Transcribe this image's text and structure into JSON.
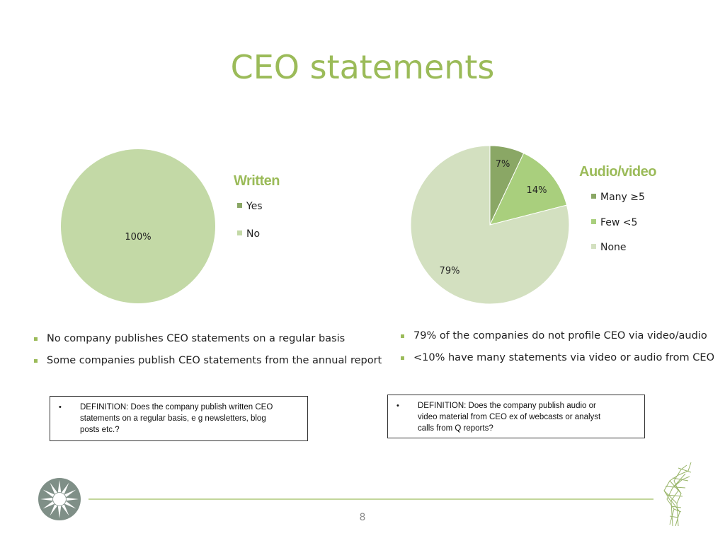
{
  "title": "CEO statements",
  "colors": {
    "accent": "#9bbb59",
    "dark_green": "#8aa765",
    "mid_green": "#a9cf7d",
    "light_green": "#c3d9a6",
    "pale_green": "#d3e0c0"
  },
  "chart_data": [
    {
      "type": "pie",
      "title": "Written",
      "categories": [
        "Yes",
        "No"
      ],
      "values": [
        0,
        100
      ],
      "data_labels": [
        "",
        "100%"
      ],
      "legend": "right"
    },
    {
      "type": "pie",
      "title": "Audio/video",
      "categories": [
        "Many ≥5",
        "Few <5",
        "None"
      ],
      "values": [
        7,
        14,
        79
      ],
      "data_labels": [
        "7%",
        "14%",
        "79%"
      ],
      "legend": "right"
    }
  ],
  "left_bullets": [
    "No company publishes CEO statements on a regular basis",
    "Some companies publish CEO statements from the annual report"
  ],
  "right_bullets": [
    "79% of the companies do not profile CEO via video/audio",
    "<10% have many statements via video or audio from CEO"
  ],
  "definitions": {
    "left": {
      "bullet": "•",
      "lines": [
        "DEFINITION: Does the company publish written CEO",
        "statements on a regular basis, e g newsletters, blog",
        "posts etc.?"
      ]
    },
    "right": {
      "bullet": "•",
      "lines": [
        "DEFINITION: Does the company publish audio or",
        "video material from CEO ex of webcasts or analyst",
        "calls from Q reports?"
      ]
    }
  },
  "page_number": "8",
  "icons": {
    "left_logo": "sun-emblem-icon",
    "right_logo": "green-sculpture-icon"
  }
}
